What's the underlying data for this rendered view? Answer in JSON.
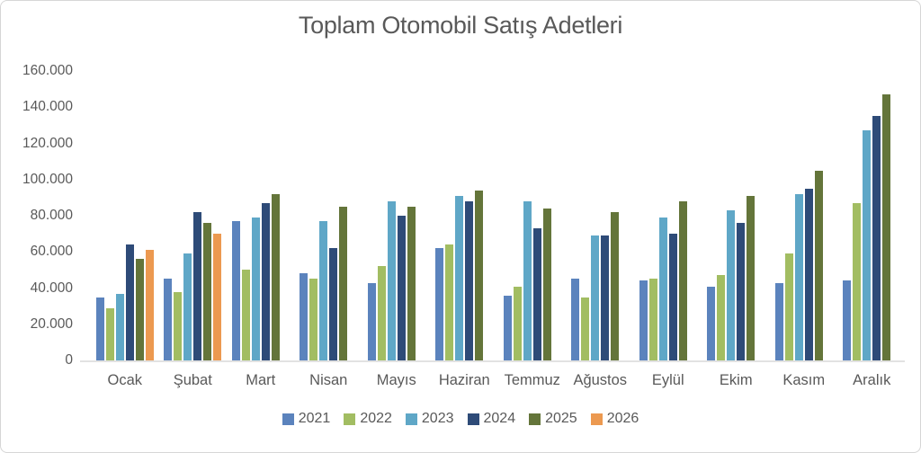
{
  "chart_data": {
    "type": "bar",
    "title": "Toplam Otomobil Satış Adetleri",
    "categories": [
      "Ocak",
      "Şubat",
      "Mart",
      "Nisan",
      "Mayıs",
      "Haziran",
      "Temmuz",
      "Ağustos",
      "Eylül",
      "Ekim",
      "Kasım",
      "Aralık"
    ],
    "series": [
      {
        "name": "2021",
        "color": "#5b83bd",
        "values": [
          35000,
          45000,
          77000,
          48000,
          43000,
          62000,
          36000,
          45000,
          44000,
          41000,
          43000,
          44000
        ]
      },
      {
        "name": "2022",
        "color": "#a2bd62",
        "values": [
          29000,
          38000,
          50000,
          45000,
          52000,
          64000,
          41000,
          35000,
          45000,
          47000,
          59000,
          87000
        ]
      },
      {
        "name": "2023",
        "color": "#5fa7c7",
        "values": [
          37000,
          59000,
          79000,
          77000,
          88000,
          91000,
          88000,
          69000,
          79000,
          83000,
          92000,
          127000
        ]
      },
      {
        "name": "2024",
        "color": "#2e4b78",
        "values": [
          64000,
          82000,
          87000,
          62000,
          80000,
          88000,
          73000,
          69000,
          70000,
          76000,
          95000,
          135000
        ]
      },
      {
        "name": "2025",
        "color": "#64753a",
        "values": [
          56000,
          76000,
          92000,
          85000,
          85000,
          94000,
          84000,
          82000,
          88000,
          91000,
          105000,
          147000
        ]
      },
      {
        "name": "2026",
        "color": "#ec9950",
        "values": [
          61000,
          70000,
          null,
          null,
          null,
          null,
          null,
          null,
          null,
          null,
          null,
          null
        ]
      }
    ],
    "ylim": [
      0,
      160000
    ],
    "ytick_interval": 20000,
    "yticks": [
      "160.000",
      "140.000",
      "120.000",
      "100.000",
      "80.000",
      "60.000",
      "40.000",
      "20.000",
      "0"
    ],
    "grid": false,
    "legend_position": "bottom"
  },
  "colors": {
    "text": "#595959",
    "axis_line": "#e2e2e2",
    "border": "#d6d6d6",
    "background": "#ffffff"
  }
}
